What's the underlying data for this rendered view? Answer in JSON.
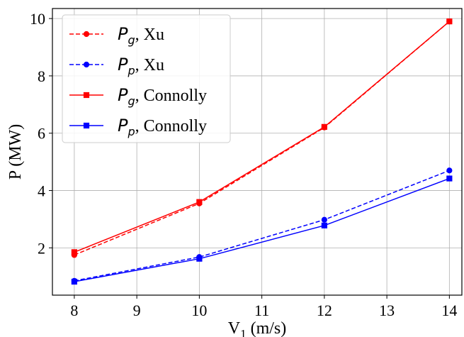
{
  "chart_data": {
    "type": "line",
    "xlabel": "V",
    "xlabel_sub": "1",
    "xlabel_unit": " (m/s)",
    "ylabel": "P (MW)",
    "xlim": [
      7.65,
      14.2
    ],
    "ylim": [
      0.35,
      10.35
    ],
    "xticks": [
      8,
      9,
      10,
      11,
      12,
      13,
      14
    ],
    "yticks": [
      2,
      4,
      6,
      8,
      10
    ],
    "grid": true,
    "legend_position": "top-left",
    "series": [
      {
        "name": "Pg, Xu",
        "symbol": "P",
        "subscript": "g",
        "suffix": ", Xu",
        "color": "#ff0000",
        "dash": "dashed",
        "marker": "circle",
        "x": [
          8,
          10,
          12,
          14
        ],
        "y": [
          1.75,
          3.55,
          6.2,
          9.9
        ]
      },
      {
        "name": "Pp, Xu",
        "symbol": "P",
        "subscript": "p",
        "suffix": ", Xu",
        "color": "#0000ff",
        "dash": "dashed",
        "marker": "circle",
        "x": [
          8,
          10,
          12,
          14
        ],
        "y": [
          0.85,
          1.68,
          2.98,
          4.7
        ]
      },
      {
        "name": "Pg, Connolly",
        "symbol": "P",
        "subscript": "g",
        "suffix": ", Connolly",
        "color": "#ff0000",
        "dash": "solid",
        "marker": "square",
        "x": [
          8,
          10,
          12,
          14
        ],
        "y": [
          1.85,
          3.6,
          6.22,
          9.9
        ]
      },
      {
        "name": "Pp, Connolly",
        "symbol": "P",
        "subscript": "p",
        "suffix": ", Connolly",
        "color": "#0000ff",
        "dash": "solid",
        "marker": "square",
        "x": [
          8,
          10,
          12,
          14
        ],
        "y": [
          0.82,
          1.62,
          2.78,
          4.42
        ]
      }
    ]
  }
}
